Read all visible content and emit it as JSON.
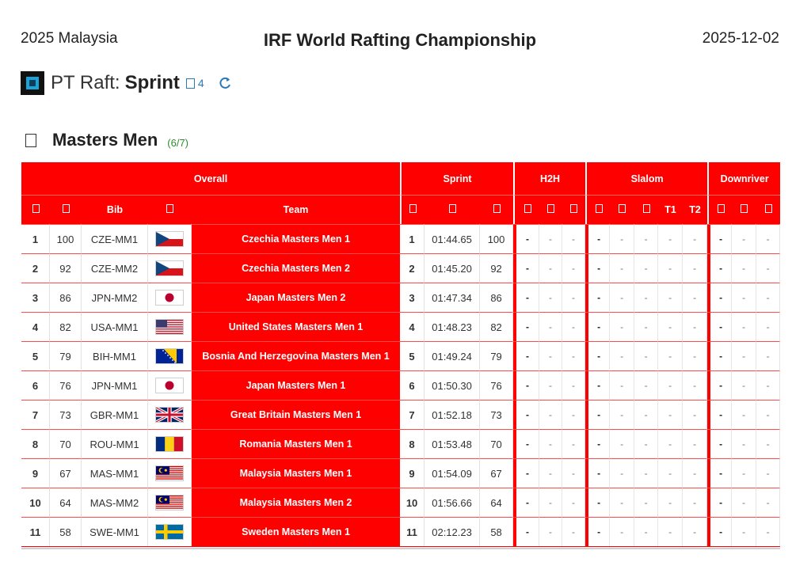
{
  "header": {
    "location": "2025 Malaysia",
    "title": "IRF World Rafting Championship",
    "date": "2025-12-02"
  },
  "event": {
    "prefix": "PT Raft:",
    "name": "Sprint",
    "count": "4",
    "logo_icon": "raft-logo-icon",
    "refresh_icon": "refresh-icon"
  },
  "category": {
    "title": "Masters Men",
    "count": "(6/7)"
  },
  "colors": {
    "accent": "#ff0000",
    "count_green": "#2e8b2e",
    "link_blue": "#2a7ab8"
  },
  "table": {
    "groups": {
      "overall": "Overall",
      "sprint": "Sprint",
      "h2h": "H2H",
      "slalom": "Slalom",
      "downriver": "Downriver"
    },
    "columns": {
      "bib": "Bib",
      "team": "Team",
      "t1": "T1",
      "t2": "T2"
    },
    "dash": "-",
    "rows": [
      {
        "rank": "1",
        "points": "100",
        "bib": "CZE-MM1",
        "country": "CZE",
        "team": "Czechia Masters Men 1",
        "sprint_rank": "1",
        "sprint_time": "01:44.65",
        "sprint_points": "100"
      },
      {
        "rank": "2",
        "points": "92",
        "bib": "CZE-MM2",
        "country": "CZE",
        "team": "Czechia Masters Men 2",
        "sprint_rank": "2",
        "sprint_time": "01:45.20",
        "sprint_points": "92"
      },
      {
        "rank": "3",
        "points": "86",
        "bib": "JPN-MM2",
        "country": "JPN",
        "team": "Japan Masters Men 2",
        "sprint_rank": "3",
        "sprint_time": "01:47.34",
        "sprint_points": "86"
      },
      {
        "rank": "4",
        "points": "82",
        "bib": "USA-MM1",
        "country": "USA",
        "team": "United States Masters Men 1",
        "sprint_rank": "4",
        "sprint_time": "01:48.23",
        "sprint_points": "82"
      },
      {
        "rank": "5",
        "points": "79",
        "bib": "BIH-MM1",
        "country": "BIH",
        "team": "Bosnia And Herzegovina Masters Men 1",
        "sprint_rank": "5",
        "sprint_time": "01:49.24",
        "sprint_points": "79"
      },
      {
        "rank": "6",
        "points": "76",
        "bib": "JPN-MM1",
        "country": "JPN",
        "team": "Japan Masters Men 1",
        "sprint_rank": "6",
        "sprint_time": "01:50.30",
        "sprint_points": "76"
      },
      {
        "rank": "7",
        "points": "73",
        "bib": "GBR-MM1",
        "country": "GBR",
        "team": "Great Britain Masters Men 1",
        "sprint_rank": "7",
        "sprint_time": "01:52.18",
        "sprint_points": "73"
      },
      {
        "rank": "8",
        "points": "70",
        "bib": "ROU-MM1",
        "country": "ROU",
        "team": "Romania Masters Men 1",
        "sprint_rank": "8",
        "sprint_time": "01:53.48",
        "sprint_points": "70"
      },
      {
        "rank": "9",
        "points": "67",
        "bib": "MAS-MM1",
        "country": "MAS",
        "team": "Malaysia Masters Men 1",
        "sprint_rank": "9",
        "sprint_time": "01:54.09",
        "sprint_points": "67"
      },
      {
        "rank": "10",
        "points": "64",
        "bib": "MAS-MM2",
        "country": "MAS",
        "team": "Malaysia Masters Men 2",
        "sprint_rank": "10",
        "sprint_time": "01:56.66",
        "sprint_points": "64"
      },
      {
        "rank": "11",
        "points": "58",
        "bib": "SWE-MM1",
        "country": "SWE",
        "team": "Sweden Masters Men 1",
        "sprint_rank": "11",
        "sprint_time": "02:12.23",
        "sprint_points": "58"
      }
    ]
  }
}
